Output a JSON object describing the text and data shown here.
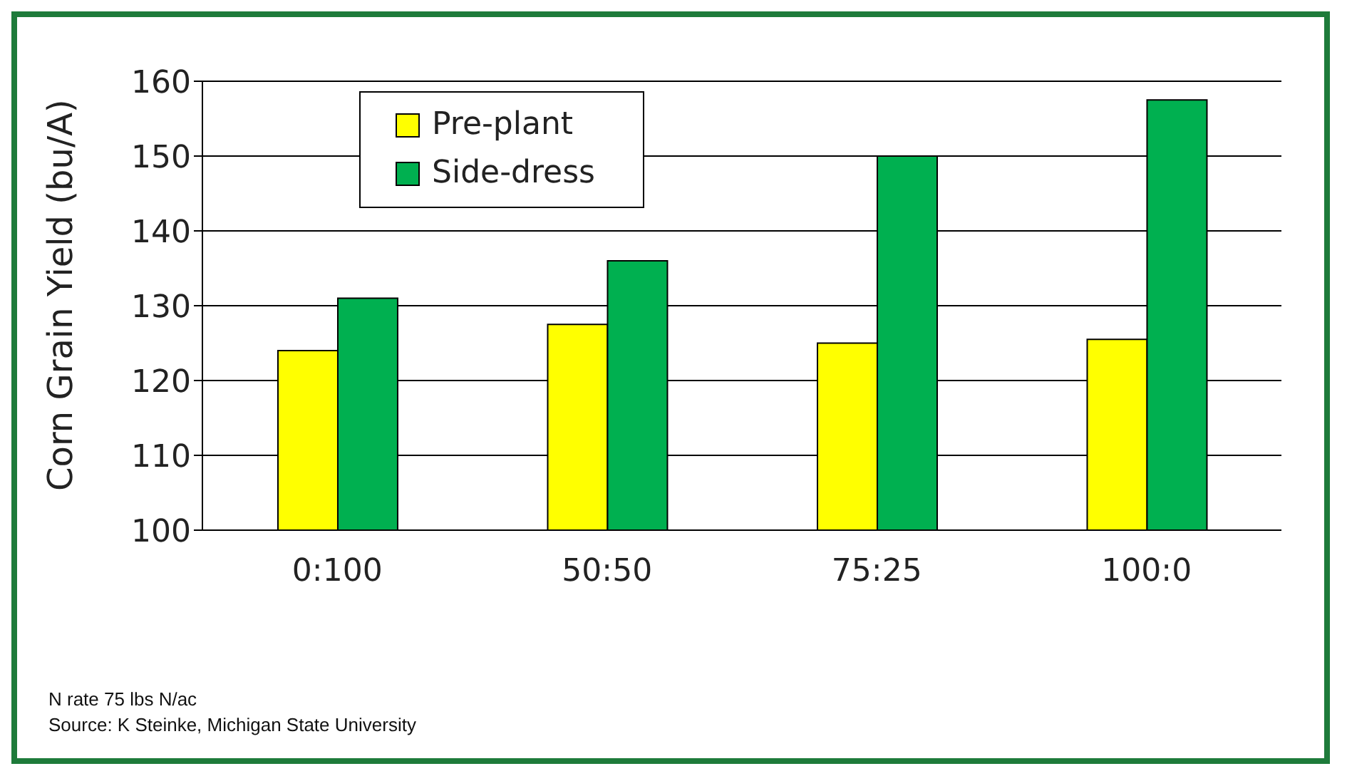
{
  "chart_data": {
    "type": "bar",
    "ylabel": "Corn Grain Yield (bu/A)",
    "categories": [
      "0:100",
      "50:50",
      "75:25",
      "100:0"
    ],
    "series": [
      {
        "name": "Pre-plant",
        "color": "#ffff00",
        "values": [
          124,
          127.5,
          125,
          125.5
        ]
      },
      {
        "name": "Side-dress",
        "color": "#00b050",
        "values": [
          131,
          136,
          150,
          157.5
        ]
      }
    ],
    "ylim": [
      100,
      160
    ],
    "yticks": [
      100,
      110,
      120,
      130,
      140,
      150,
      160
    ],
    "grid": "y",
    "legend": "top left",
    "annotations": [
      "N rate 75 lbs N/ac",
      "Source: K Steinke, Michigan State University"
    ]
  }
}
